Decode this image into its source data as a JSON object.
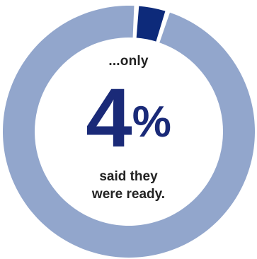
{
  "chart_data": {
    "type": "pie",
    "style": "donut",
    "title": "",
    "slices": [
      {
        "label": "said they were ready",
        "value": 4,
        "color": "#0d2a7a"
      },
      {
        "label": "",
        "value": 96,
        "color": "#92a6cc"
      }
    ],
    "center_label": {
      "lead": "...only",
      "value": "4",
      "unit": "%",
      "line1": "said they",
      "line2": "were ready."
    }
  }
}
